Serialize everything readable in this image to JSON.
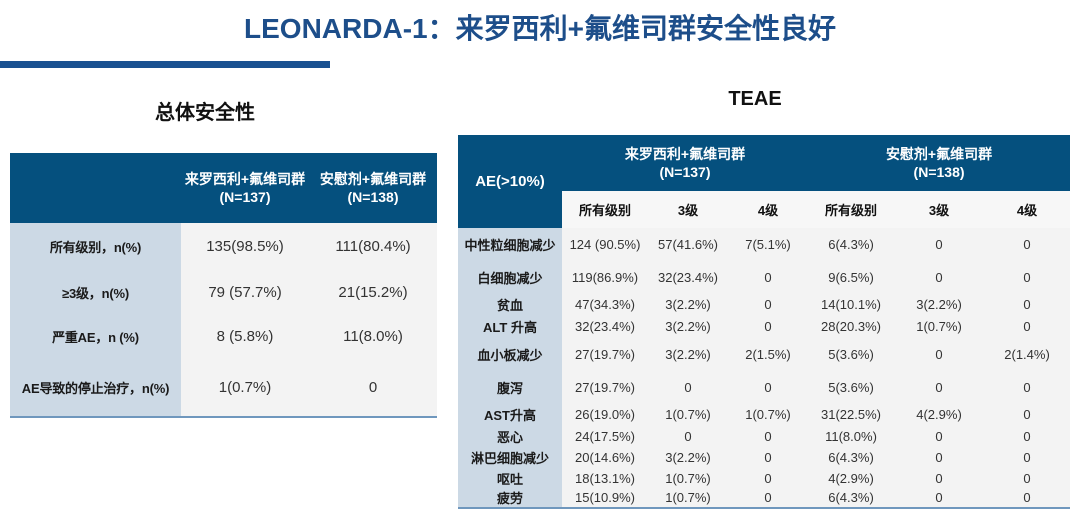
{
  "header": {
    "title": "LEONARDA-1：来罗西利+氟维司群安全性良好"
  },
  "colors": {
    "title_blue": "#1d4e8a",
    "bar_blue": "#1a5191",
    "table_header_blue": "#05507e",
    "row_label_blue": "#ccd9e5",
    "data_cell_gray": "#f3f3f3",
    "bottom_line_blue": "#6f97bd"
  },
  "overall_safety": {
    "title": "总体安全性",
    "columns": [
      {
        "name": "来罗西利+氟维司群",
        "n": "(N=137)"
      },
      {
        "name": "安慰剂+氟维司群",
        "n": "(N=138)"
      }
    ],
    "rows": [
      {
        "label": "所有级别，n(%)",
        "values": [
          "135(98.5%)",
          "111(80.4%)"
        ]
      },
      {
        "label": "≥3级，n(%)",
        "values": [
          "79 (57.7%)",
          "21(15.2%)"
        ]
      },
      {
        "label": "严重AE，n (%)",
        "values": [
          "8 (5.8%)",
          "11(8.0%)"
        ]
      },
      {
        "label": "AE导致的停止治疗，n(%)",
        "values": [
          "1(0.7%)",
          "0"
        ]
      }
    ]
  },
  "teae": {
    "title": "TEAE",
    "row_header": "AE(>10%)",
    "groups": [
      {
        "name": "来罗西利+氟维司群",
        "n": "(N=137)"
      },
      {
        "name": "安慰剂+氟维司群",
        "n": "(N=138)"
      }
    ],
    "subcolumns": [
      "所有级别",
      "3级",
      "4级",
      "所有级别",
      "3级",
      "4级"
    ],
    "rows": [
      {
        "label": "中性粒细胞减少",
        "values": [
          "124 (90.5%)",
          "57(41.6%)",
          "7(5.1%)",
          "6(4.3%)",
          "0",
          "0"
        ]
      },
      {
        "label": "白细胞减少",
        "values": [
          "119(86.9%)",
          "32(23.4%)",
          "0",
          "9(6.5%)",
          "0",
          "0"
        ]
      },
      {
        "label": "贫血",
        "values": [
          "47(34.3%)",
          "3(2.2%)",
          "0",
          "14(10.1%)",
          "3(2.2%)",
          "0"
        ]
      },
      {
        "label": "ALT 升高",
        "values": [
          "32(23.4%)",
          "3(2.2%)",
          "0",
          "28(20.3%)",
          "1(0.7%)",
          "0"
        ]
      },
      {
        "label": "血小板减少",
        "values": [
          "27(19.7%)",
          "3(2.2%)",
          "2(1.5%)",
          "5(3.6%)",
          "0",
          "2(1.4%)"
        ]
      },
      {
        "label": "腹泻",
        "values": [
          "27(19.7%)",
          "0",
          "0",
          "5(3.6%)",
          "0",
          "0"
        ]
      },
      {
        "label": "AST升高",
        "values": [
          "26(19.0%)",
          "1(0.7%)",
          "1(0.7%)",
          "31(22.5%)",
          "4(2.9%)",
          "0"
        ]
      },
      {
        "label": "恶心",
        "values": [
          "24(17.5%)",
          "0",
          "0",
          "11(8.0%)",
          "0",
          "0"
        ]
      },
      {
        "label": "淋巴细胞减少",
        "values": [
          "20(14.6%)",
          "3(2.2%)",
          "0",
          "6(4.3%)",
          "0",
          "0"
        ]
      },
      {
        "label": "呕吐",
        "values": [
          "18(13.1%)",
          "1(0.7%)",
          "0",
          "4(2.9%)",
          "0",
          "0"
        ]
      },
      {
        "label": "疲劳",
        "values": [
          "15(10.9%)",
          "1(0.7%)",
          "0",
          "6(4.3%)",
          "0",
          "0"
        ]
      }
    ]
  }
}
